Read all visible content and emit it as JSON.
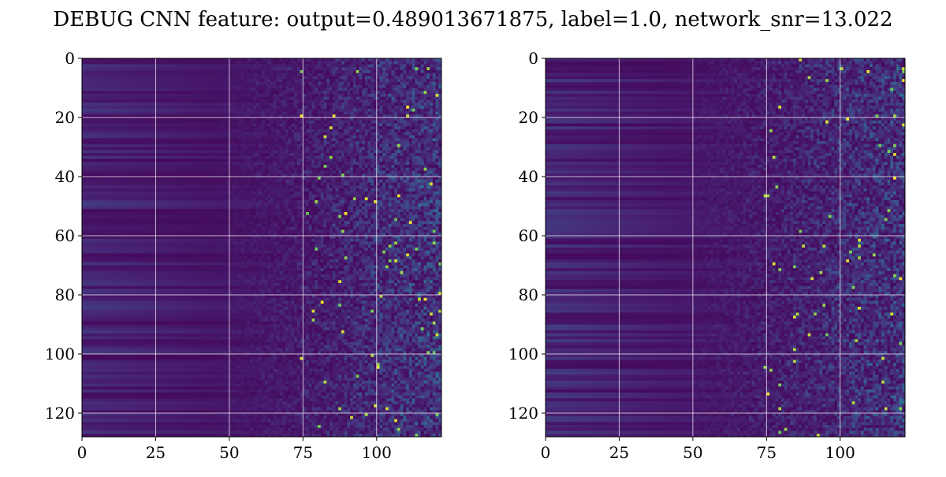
{
  "figure": {
    "suptitle": "DEBUG CNN feature: output=0.489013671875, label=1.0, network_snr=13.022"
  },
  "colormap": "viridis",
  "colors": {
    "grid": "#ffffff",
    "axes": "#000000"
  },
  "chart_data": [
    {
      "type": "heatmap",
      "title": "",
      "xlabel": "",
      "ylabel": "",
      "rows": 128,
      "cols": 122,
      "xlim": [
        0,
        122
      ],
      "ylim": [
        128,
        0
      ],
      "x_ticks": [
        0,
        25,
        50,
        75,
        100
      ],
      "y_ticks": [
        0,
        20,
        40,
        60,
        80,
        100,
        120
      ],
      "x_tick_labels": [
        "0",
        "25",
        "50",
        "75",
        "100"
      ],
      "y_tick_labels": [
        "0",
        "20",
        "40",
        "60",
        "80",
        "100",
        "120"
      ],
      "grid": true,
      "value_range": [
        0,
        1
      ],
      "pattern": "low smooth banded values for columns 0-55, increasing noisy speckle toward higher columns with sparse bright peaks"
    },
    {
      "type": "heatmap",
      "title": "",
      "xlabel": "",
      "ylabel": "",
      "rows": 128,
      "cols": 122,
      "xlim": [
        0,
        122
      ],
      "ylim": [
        128,
        0
      ],
      "x_ticks": [
        0,
        25,
        50,
        75,
        100
      ],
      "y_ticks": [
        0,
        20,
        40,
        60,
        80,
        100,
        120
      ],
      "x_tick_labels": [
        "0",
        "25",
        "50",
        "75",
        "100"
      ],
      "y_tick_labels": [
        "0",
        "20",
        "40",
        "60",
        "80",
        "100",
        "120"
      ],
      "grid": true,
      "value_range": [
        0,
        1
      ],
      "pattern": "low smooth banded values for columns 0-55, increasing noisy speckle toward higher columns with sparse bright peaks"
    }
  ]
}
